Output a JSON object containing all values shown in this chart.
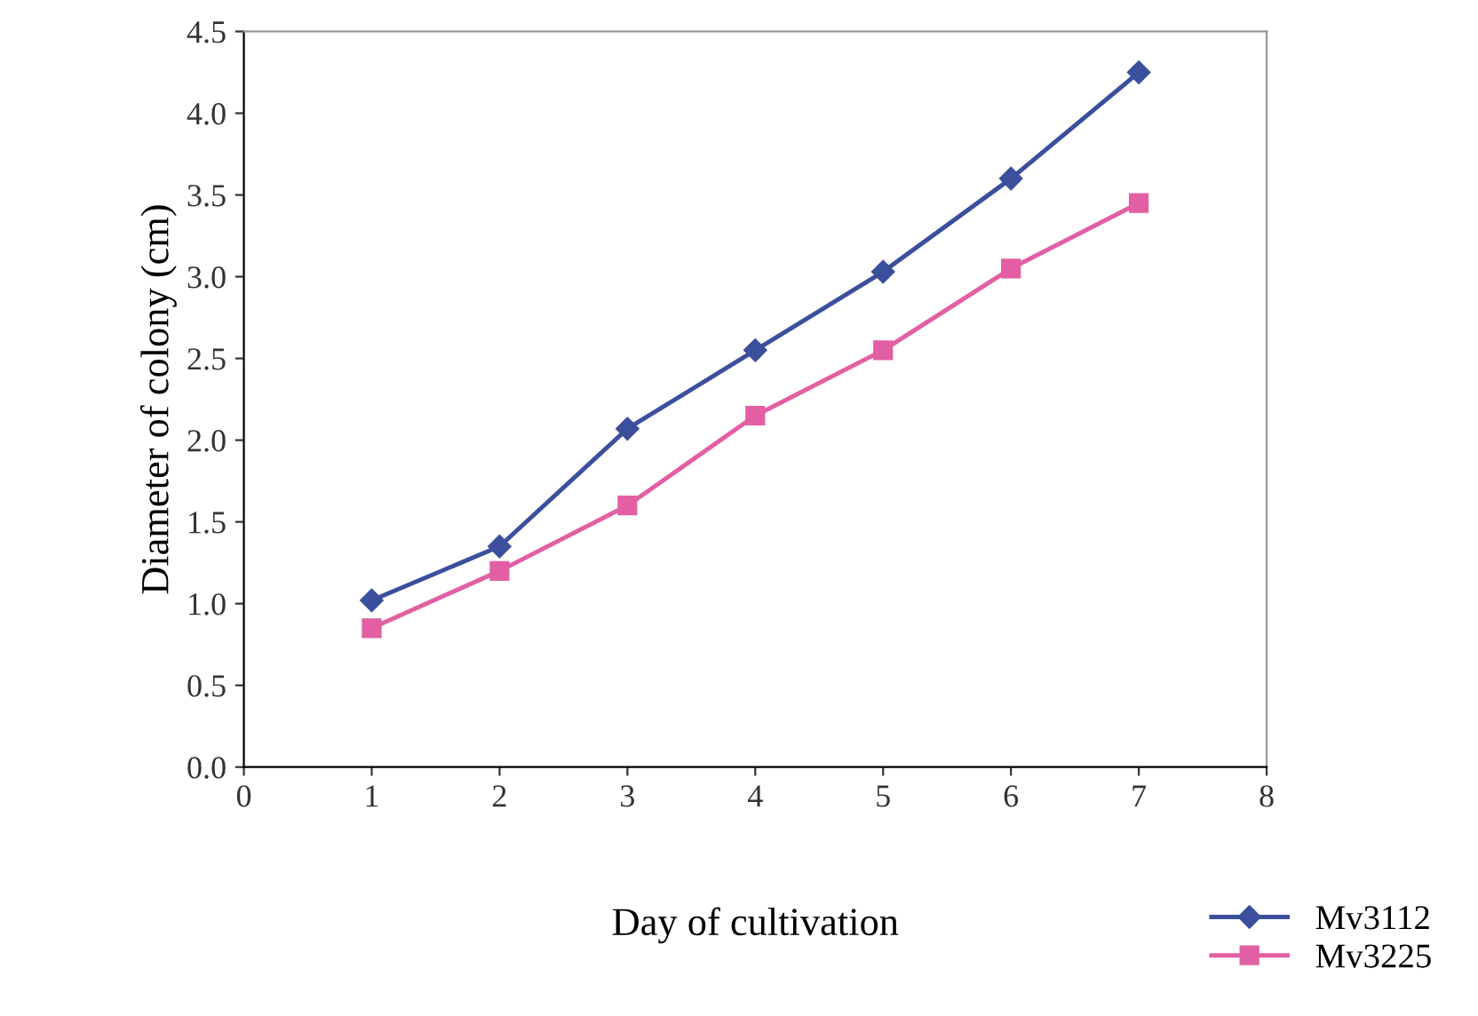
{
  "chart_data": {
    "type": "line",
    "xlabel": "Day of cultivation",
    "ylabel": "Diameter of colony (cm)",
    "x": [
      1,
      2,
      3,
      4,
      5,
      6,
      7
    ],
    "series": [
      {
        "name": "Mv3112",
        "color": "#3b4f9c",
        "marker": "diamond",
        "values": [
          1.02,
          1.35,
          2.07,
          2.55,
          3.03,
          3.6,
          4.25
        ]
      },
      {
        "name": "Mv3225",
        "color": "#e35fa3",
        "marker": "square",
        "values": [
          0.85,
          1.2,
          1.6,
          2.15,
          2.55,
          3.05,
          3.45
        ]
      }
    ],
    "xlim": [
      0,
      8
    ],
    "xticks": [
      0,
      1,
      2,
      3,
      4,
      5,
      6,
      7,
      8
    ],
    "ylim": [
      0,
      4.5
    ],
    "yticks": [
      {
        "value": 0,
        "label": "0.0"
      },
      {
        "value": 0.5,
        "label": "0.5"
      },
      {
        "value": 1,
        "label": "1.0"
      },
      {
        "value": 1.5,
        "label": "1.5"
      },
      {
        "value": 2,
        "label": "2.0"
      },
      {
        "value": 2.5,
        "label": "2.5"
      },
      {
        "value": 3,
        "label": "3.0"
      },
      {
        "value": 3.5,
        "label": "3.5"
      },
      {
        "value": 4,
        "label": "4.0"
      },
      {
        "value": 4.5,
        "label": "4.5"
      }
    ],
    "grid": false,
    "legend": "bottom right",
    "line_style": "solid"
  }
}
